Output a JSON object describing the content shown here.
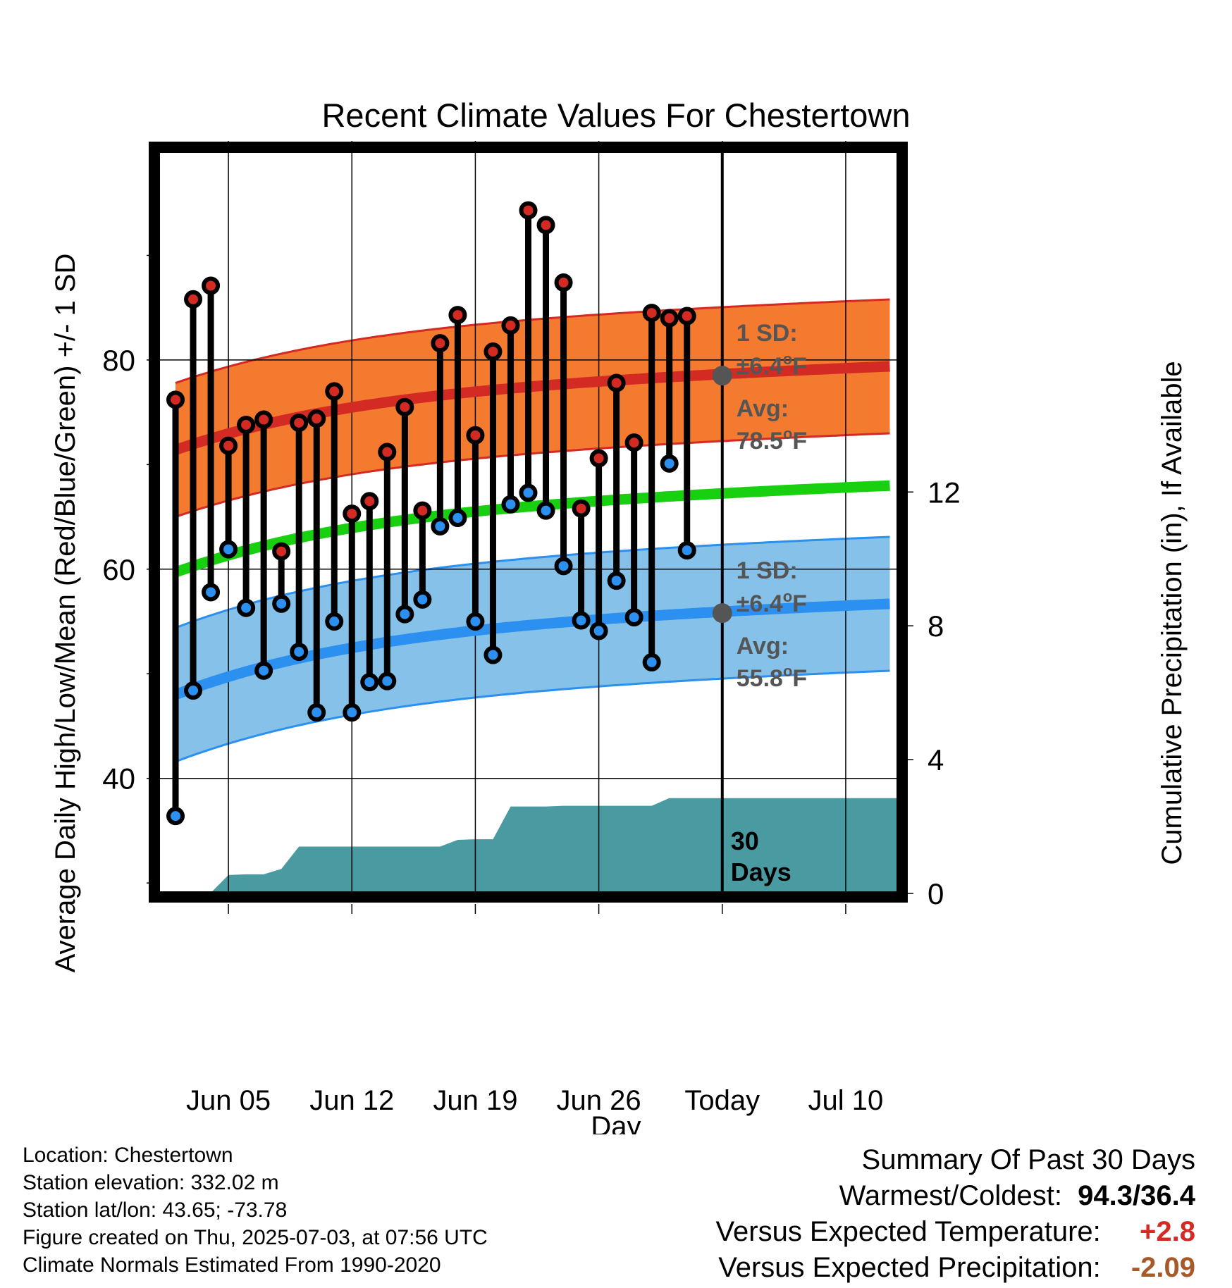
{
  "chart_data": {
    "type": "line",
    "title": "Recent Climate Values For Chestertown",
    "xlabel": "Day",
    "ylabel": "Average Daily High/Low/Mean (Red/Blue/Green) +/- 1 SD",
    "y2label": "Cumulative Precipitation (in), If Available",
    "x_start_date": "2025-06-02",
    "x_today_date": "2025-07-03",
    "xlim": [
      "2025-06-01",
      "2025-07-13"
    ],
    "x_ticks": [
      {
        "date": "2025-06-05",
        "label": "Jun 05"
      },
      {
        "date": "2025-06-12",
        "label": "Jun 12"
      },
      {
        "date": "2025-06-19",
        "label": "Jun 19"
      },
      {
        "date": "2025-06-26",
        "label": "Jun 26"
      },
      {
        "date": "2025-07-03",
        "label": "Today"
      },
      {
        "date": "2025-07-10",
        "label": "Jul 10"
      }
    ],
    "ylim": [
      29,
      100
    ],
    "y_major_ticks": [
      40,
      60,
      80
    ],
    "y_minor_ticks": [
      30,
      50,
      70,
      90
    ],
    "y2lim": [
      0,
      22.2
    ],
    "y2_ticks": [
      0,
      4,
      8,
      12
    ],
    "grid": true,
    "daily_high": [
      76.2,
      85.8,
      87.1,
      71.8,
      73.8,
      74.3,
      61.7,
      74.0,
      74.4,
      77.0,
      65.3,
      66.5,
      71.2,
      75.5,
      65.6,
      81.6,
      84.3,
      72.8,
      80.8,
      83.3,
      94.3,
      92.9,
      87.4,
      65.8,
      70.6,
      77.8,
      72.1,
      84.5,
      84.0,
      84.2
    ],
    "daily_low": [
      36.4,
      48.4,
      57.8,
      61.9,
      56.3,
      50.3,
      56.7,
      52.1,
      46.3,
      55.0,
      46.3,
      49.2,
      49.3,
      55.7,
      57.1,
      64.1,
      64.9,
      55.0,
      51.8,
      66.2,
      67.3,
      65.6,
      60.3,
      55.1,
      54.1,
      58.9,
      55.4,
      51.1,
      70.1,
      61.8
    ],
    "normal_high": {
      "start": 71.4,
      "today": 78.5,
      "end": 79.4,
      "label": "Avg:",
      "value": "78.5",
      "unit": "oF"
    },
    "normal_low": {
      "start": 48.0,
      "today": 55.8,
      "end": 56.7,
      "label": "Avg:",
      "value": "55.8",
      "unit": "oF"
    },
    "normal_mean": {
      "start": 59.7,
      "today": 67.1,
      "end": 68.0
    },
    "sd": {
      "label": "1 SD:",
      "value": "±6.4",
      "unit": "oF"
    },
    "precip_cumulative": [
      0,
      0,
      0.02,
      0.55,
      0.57,
      0.57,
      0.73,
      1.4,
      1.4,
      1.4,
      1.4,
      1.4,
      1.4,
      1.4,
      1.4,
      1.4,
      1.6,
      1.62,
      1.62,
      2.6,
      2.6,
      2.6,
      2.62,
      2.62,
      2.62,
      2.62,
      2.62,
      2.62,
      2.85,
      2.85,
      2.85,
      2.85
    ],
    "precip_label": "30\nDays",
    "colors": {
      "high_band": "#f47a30",
      "high_line": "#d42a24",
      "low_band": "#85c1e8",
      "low_line": "#2b90f0",
      "mean_line": "#18d010",
      "precip": "#4a9aa2",
      "high_dot": "#d42a24",
      "low_dot": "#2b90f0",
      "today_dot": "#555555",
      "annotation_text": "#555555"
    }
  },
  "info": {
    "location": "Location: Chestertown",
    "elevation": "Station elevation: 332.02 m",
    "latlon": "Station lat/lon: 43.65; -73.78",
    "created": "Figure created on Thu, 2025-07-03, at 07:56 UTC",
    "normals": "Climate Normals Estimated From 1990-2020"
  },
  "summary": {
    "header": "Summary Of Past 30 Days",
    "warmest_label": "Warmest/Coldest:",
    "warmest_value": "94.3/36.4",
    "temp_label": "Versus Expected Temperature:",
    "temp_value": "+2.8",
    "temp_color": "#d42a24",
    "precip_label": "Versus Expected Precipitation:",
    "precip_value": "-2.09",
    "precip_color": "#a8592a"
  }
}
